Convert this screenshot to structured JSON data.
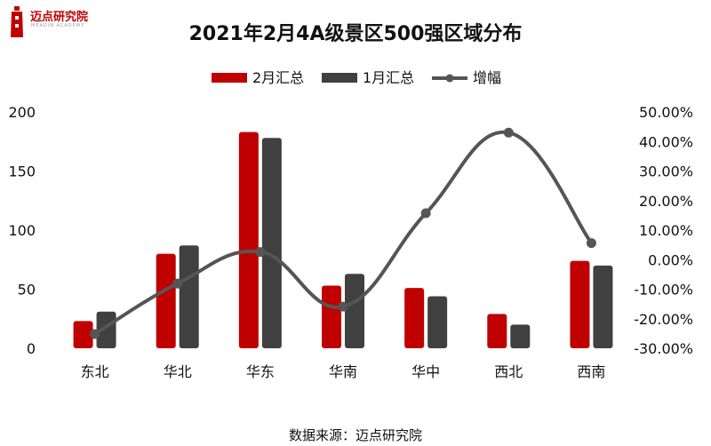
{
  "logo": {
    "text": "迈点研究院",
    "subtext": "MEADIN ACADEMY"
  },
  "source_note": "数据来源：迈点研究院",
  "colors": {
    "feb": "#c00000",
    "jan": "#404040",
    "growth": "#555555"
  },
  "chart_data": {
    "type": "bar",
    "title": "2021年2月4A级景区500强区域分布",
    "categories": [
      "东北",
      "华北",
      "华东",
      "华南",
      "华中",
      "西北",
      "西南"
    ],
    "series": [
      {
        "name": "2月汇总",
        "type": "bar",
        "axis": "left",
        "values": [
          23,
          80,
          183,
          53,
          51,
          29,
          74
        ]
      },
      {
        "name": "1月汇总",
        "type": "bar",
        "axis": "left",
        "values": [
          31,
          87,
          178,
          63,
          44,
          20,
          70
        ]
      },
      {
        "name": "增幅",
        "type": "line",
        "axis": "right",
        "smooth": true,
        "values": [
          -25.2,
          -8.1,
          2.6,
          -15.9,
          15.7,
          43.0,
          5.6
        ]
      }
    ],
    "y_left": {
      "ylim": [
        0,
        200
      ],
      "ticks": [
        "0",
        "50",
        "100",
        "150",
        "200"
      ]
    },
    "y_right": {
      "ylim": [
        -30,
        50
      ],
      "ticks": [
        "50.00%",
        "40.00%",
        "30.00%",
        "20.00%",
        "10.00%",
        "0.00%",
        "-10.00%",
        "-20.00%",
        "-30.00%"
      ]
    },
    "legend": "top-center",
    "grid": false
  }
}
